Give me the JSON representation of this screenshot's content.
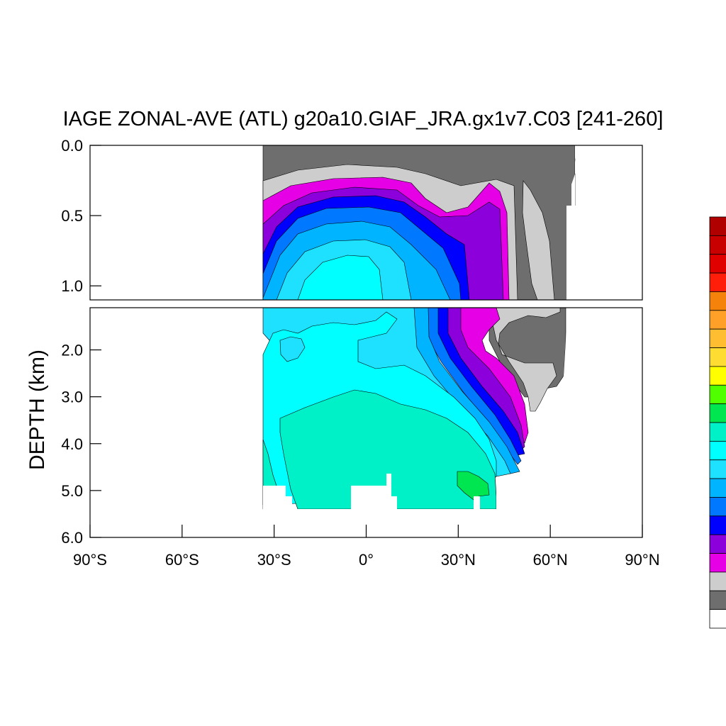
{
  "chart_data": {
    "type": "heatmap",
    "title": "IAGE ZONAL-AVE (ATL) g20a10.GIAF_JRA.gx1v7.C03 [241-260]",
    "ylabel": "DEPTH (km)",
    "xlabel": "",
    "x_ticks": [
      {
        "value": -90,
        "label": "90°S"
      },
      {
        "value": -60,
        "label": "60°S"
      },
      {
        "value": -30,
        "label": "30°S"
      },
      {
        "value": 0,
        "label": "0°"
      },
      {
        "value": 30,
        "label": "30°N"
      },
      {
        "value": 60,
        "label": "60°N"
      },
      {
        "value": 90,
        "label": "90°N"
      }
    ],
    "xlim": [
      -90,
      90
    ],
    "upper_panel": {
      "ylim": [
        0,
        1.1
      ],
      "y_ticks": [
        {
          "value": 0,
          "label": "0.0"
        },
        {
          "value": 0.5,
          "label": "0.5"
        },
        {
          "value": 1.0,
          "label": "1.0"
        }
      ]
    },
    "lower_panel": {
      "ylim": [
        1.1,
        6.0
      ],
      "y_ticks": [
        {
          "value": 2,
          "label": "2.0"
        },
        {
          "value": 3,
          "label": "3.0"
        },
        {
          "value": 4,
          "label": "4.0"
        },
        {
          "value": 5,
          "label": "5.0"
        },
        {
          "value": 6,
          "label": "6.0"
        }
      ]
    },
    "colorbar_colors": [
      "#b00000",
      "#c80000",
      "#e00000",
      "#ff1e0a",
      "#f5820a",
      "#ffa028",
      "#ffbe32",
      "#ffdc32",
      "#ffff00",
      "#50ff00",
      "#00e650",
      "#00f0c8",
      "#00ffff",
      "#1ee1ff",
      "#00b4ff",
      "#0078ff",
      "#0000ff",
      "#8c00dc",
      "#e600e6",
      "#cdcdcd",
      "#6e6e6e",
      "#ffffff"
    ]
  }
}
